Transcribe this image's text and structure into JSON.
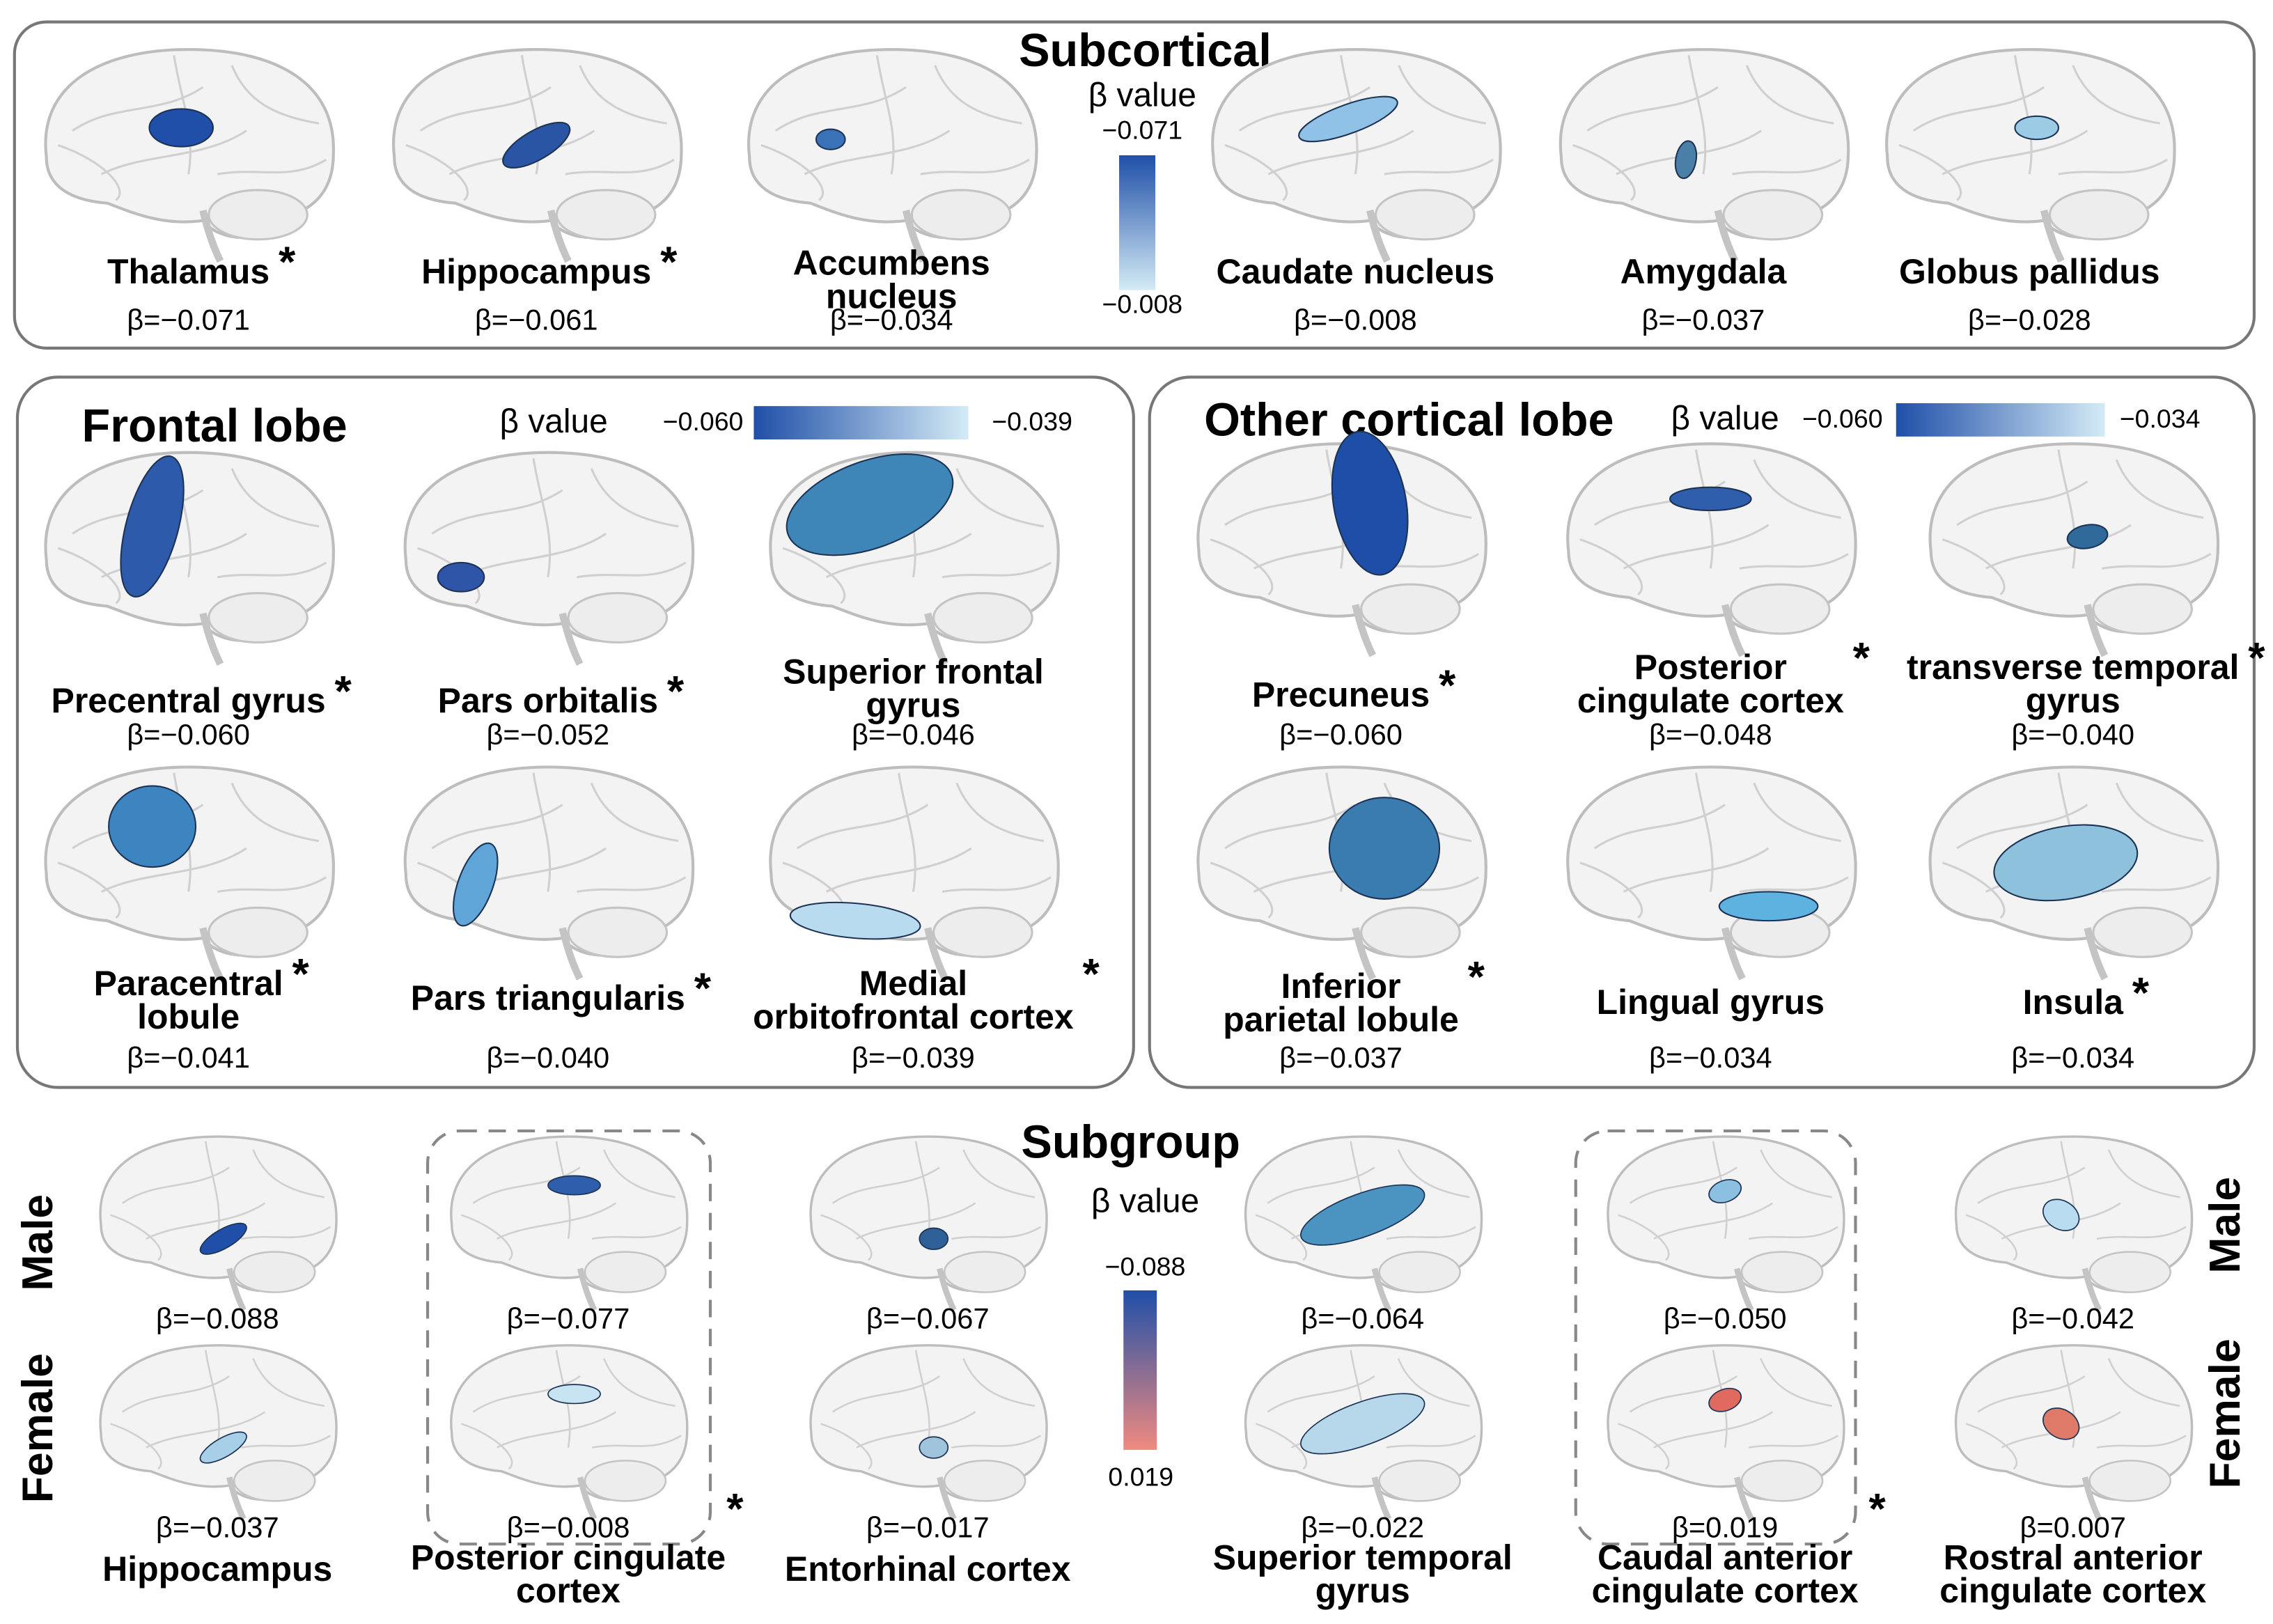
{
  "subcortical": {
    "title": "Subcortical",
    "legend_title": "β value",
    "scale_top": "−0.071",
    "scale_bottom": "−0.008",
    "panels": [
      {
        "label": [
          "Thalamus"
        ],
        "beta": "β=−0.071",
        "star": "*",
        "color": "#1f4fa8"
      },
      {
        "label": [
          "Hippocampus"
        ],
        "beta": "β=−0.061",
        "star": "*",
        "color": "#2a55a5"
      },
      {
        "label": [
          "Accumbens",
          "nucleus"
        ],
        "beta": "β=−0.034",
        "color": "#3a72b8"
      },
      {
        "label": [
          "Caudate nucleus"
        ],
        "beta": "β=−0.008",
        "color": "#8fc2e6"
      },
      {
        "label": [
          "Amygdala"
        ],
        "beta": "β=−0.037",
        "color": "#4a7fa8"
      },
      {
        "label": [
          "Globus pallidus"
        ],
        "beta": "β=−0.028",
        "color": "#9ccbe6"
      }
    ]
  },
  "frontal_lobe": {
    "title": "Frontal lobe",
    "legend_title": "β value",
    "scale_left": "−0.060",
    "scale_right": "−0.039",
    "panels": [
      {
        "label": [
          "Precentral gyrus"
        ],
        "beta": "β=−0.060",
        "star": "*",
        "color": "#2d5aaa"
      },
      {
        "label": [
          "Pars orbitalis"
        ],
        "beta": "β=−0.052",
        "star": "*",
        "color": "#2f55a8"
      },
      {
        "label": [
          "Superior frontal",
          "gyrus"
        ],
        "beta": "β=−0.046",
        "color": "#3e86b8"
      },
      {
        "label": [
          "Paracentral",
          "lobule"
        ],
        "beta": "β=−0.041",
        "star": "*",
        "color": "#3d85c0"
      },
      {
        "label": [
          "Pars triangularis"
        ],
        "beta": "β=−0.040",
        "star": "*",
        "color": "#5fa5d8"
      },
      {
        "label": [
          "Medial",
          "orbitofrontal cortex"
        ],
        "beta": "β=−0.039",
        "star": "*",
        "color": "#b9dbef"
      }
    ]
  },
  "other_cortical_lobe": {
    "title": "Other cortical lobe",
    "legend_title": "β value",
    "scale_left": "−0.060",
    "scale_right": "−0.034",
    "panels": [
      {
        "label": [
          "Precuneus"
        ],
        "beta": "β=−0.060",
        "star": "*",
        "color": "#1e4ea8"
      },
      {
        "label": [
          "Posterior",
          "cingulate cortex"
        ],
        "beta": "β=−0.048",
        "star": "*",
        "color": "#2f5eac"
      },
      {
        "label": [
          "transverse temporal",
          "gyrus"
        ],
        "beta": "β=−0.040",
        "star": "*",
        "color": "#2f6a9a"
      },
      {
        "label": [
          "Inferior",
          "parietal lobule"
        ],
        "beta": "β=−0.037",
        "star": "*",
        "color": "#3a7cb0"
      },
      {
        "label": [
          "Lingual gyrus"
        ],
        "beta": "β=−0.034",
        "color": "#5db2e0"
      },
      {
        "label": [
          "Insula"
        ],
        "beta": "β=−0.034",
        "star": "*",
        "color": "#8ec2dc"
      }
    ]
  },
  "subgroup": {
    "title": "Subgroup",
    "legend_title": "β value",
    "scale_top": "−0.088",
    "scale_bottom": "0.019",
    "row_labels": [
      "Male",
      "Female"
    ],
    "panels": [
      {
        "label": [
          "Hippocampus"
        ],
        "male_beta": "β=−0.088",
        "female_beta": "β=−0.037",
        "male_color": "#1f4fa8",
        "female_color": "#a8cfe8"
      },
      {
        "label": [
          "Posterior cingulate",
          "cortex"
        ],
        "male_beta": "β=−0.077",
        "female_beta": "β=−0.008",
        "star": "*",
        "male_color": "#2f5eac",
        "female_color": "#c8e4f2"
      },
      {
        "label": [
          "Entorhinal cortex"
        ],
        "male_beta": "β=−0.067",
        "female_beta": "β=−0.017",
        "male_color": "#2e5f96",
        "female_color": "#a0c4dc"
      },
      {
        "label": [
          "Superior temporal",
          "gyrus"
        ],
        "male_beta": "β=−0.064",
        "female_beta": "β=−0.022",
        "male_color": "#4b93c0",
        "female_color": "#b7d8ea"
      },
      {
        "label": [
          "Caudal anterior",
          "cingulate cortex"
        ],
        "male_beta": "β=−0.050",
        "female_beta": "β=0.019",
        "star": "*",
        "male_color": "#8cc0e0",
        "female_color": "#e06a60"
      },
      {
        "label": [
          "Rostral anterior",
          "cingulate cortex"
        ],
        "male_beta": "β=−0.042",
        "female_beta": "β=0.007",
        "male_color": "#b9dcf0",
        "female_color": "#e07a68"
      }
    ]
  }
}
